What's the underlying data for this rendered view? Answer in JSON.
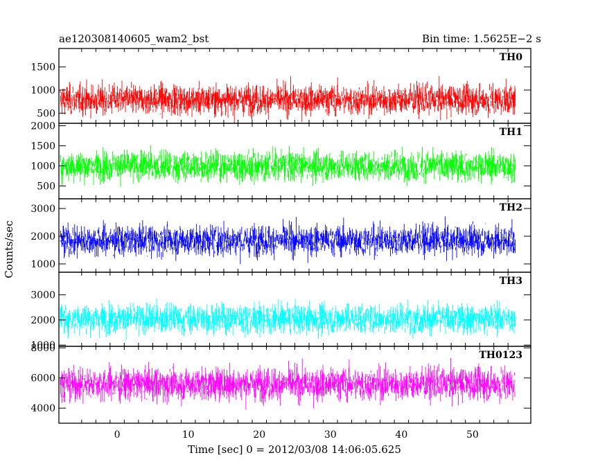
{
  "chart_data": {
    "type": "line",
    "title": "ae120308140605_wam2_bst",
    "bin_time_label": "Bin time: 1.5625E−2 s",
    "xlabel": "Time [sec] 0 = 2012/03/08 14:06:05.625",
    "ylabel": "Counts/sec",
    "xlim": [
      -8.2,
      58.2
    ],
    "data_xrange": [
      -8,
      56
    ],
    "x_ticks": [
      0,
      10,
      20,
      30,
      40,
      50
    ],
    "grid": false,
    "panels": [
      {
        "name": "TH0",
        "color": "#ff0000",
        "ylim": [
          280,
          1900
        ],
        "y_ticks": [
          500,
          1000,
          1500
        ],
        "mean": 790,
        "typical_min": 250,
        "typical_max": 1500
      },
      {
        "name": "TH1",
        "color": "#00ff00",
        "ylim": [
          180,
          2060
        ],
        "y_ticks": [
          500,
          1000,
          1500,
          2000
        ],
        "mean": 1000,
        "typical_min": 350,
        "typical_max": 1800
      },
      {
        "name": "TH2",
        "color": "#0000ff",
        "ylim": [
          700,
          3350
        ],
        "y_ticks": [
          1000,
          2000,
          3000
        ],
        "mean": 1850,
        "typical_min": 900,
        "typical_max": 3000
      },
      {
        "name": "TH3",
        "color": "#00ffff",
        "ylim": [
          950,
          3900
        ],
        "y_ticks": [
          1000,
          2000,
          3000
        ],
        "mean": 2050,
        "typical_min": 1000,
        "typical_max": 3300
      },
      {
        "name": "TH0123",
        "color": "#ff00ff",
        "ylim": [
          3000,
          8100
        ],
        "y_ticks": [
          4000,
          6000,
          8000
        ],
        "mean": 5600,
        "typical_min": 3600,
        "typical_max": 7800
      }
    ]
  }
}
